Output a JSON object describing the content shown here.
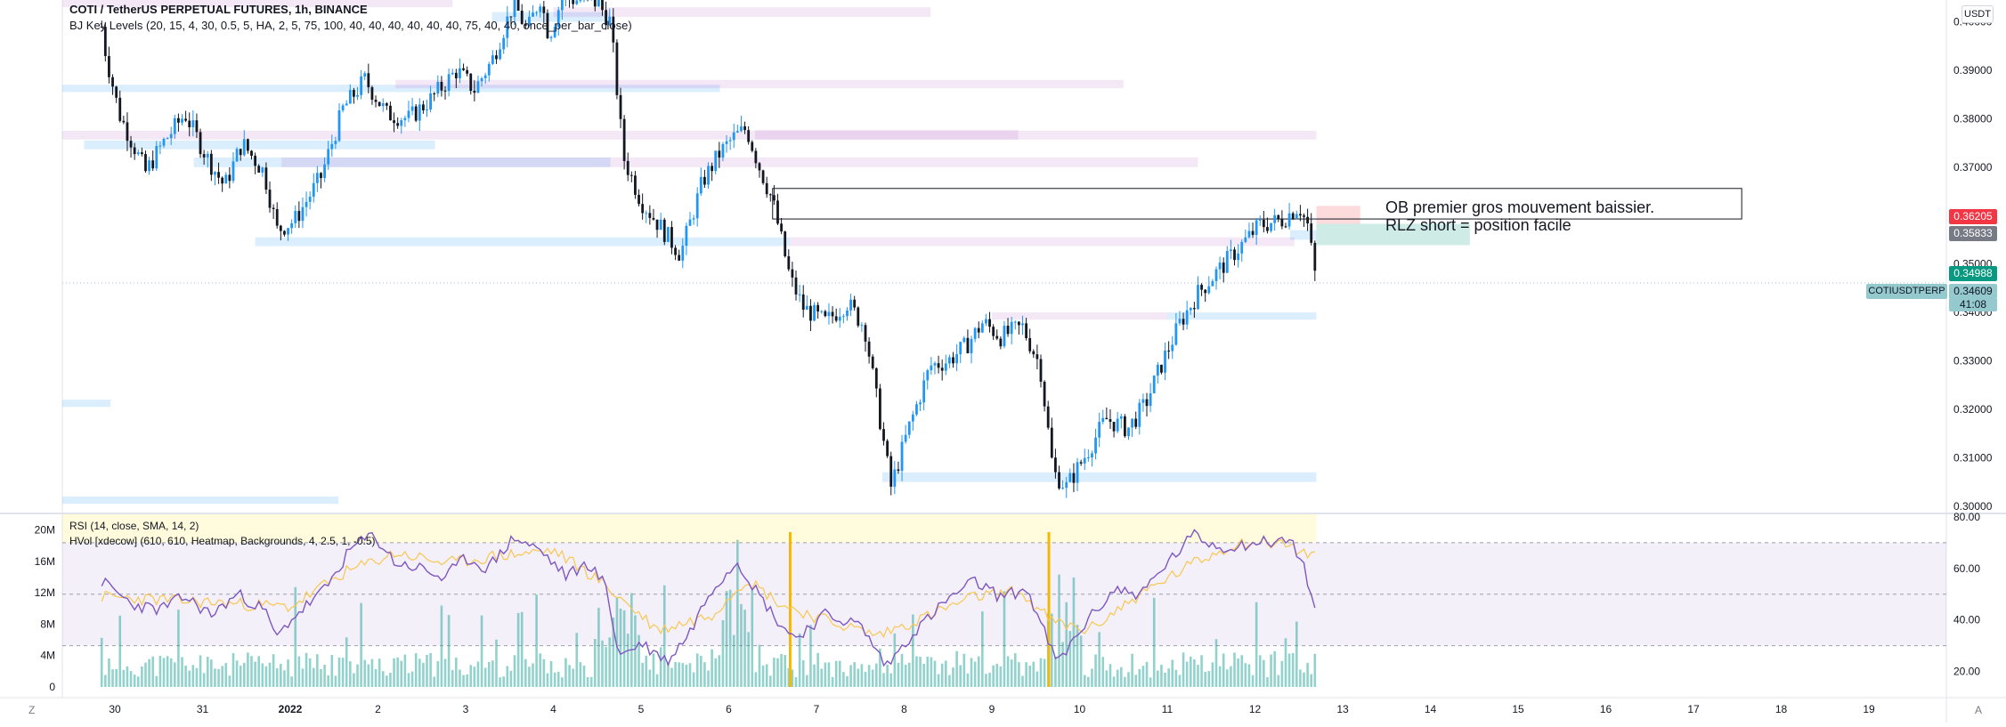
{
  "header": {
    "title": "COTI / TetherUS PERPETUAL FUTURES, 1h, BINANCE",
    "indicator": "BJ Key Levels (20, 15, 4, 30, 0.5, 5, HA, 2, 5, 75, 100, 40, 40, 40, 40, 40, 40, 75, 40, 40, once_per_bar_close)"
  },
  "lower_pane": {
    "rsi_label": "RSI (14, close, SMA, 14, 2)",
    "hvol_label": "HVol [xdecow] (610, 610, Heatmap, Backgrounds, 4, 2.5, 1, -0.5)"
  },
  "annotation": {
    "line1": "OB premier gros mouvement baissier.",
    "line2": "RLZ short = position facile"
  },
  "right_axis": {
    "currency": "USDT",
    "badges": [
      {
        "value": "0.36205",
        "color": "#f23645"
      },
      {
        "value": "0.35833",
        "color": "#787b86"
      },
      {
        "value": "0.34988",
        "color": "#089981"
      },
      {
        "value": "0.34609",
        "color": "#94c9ce",
        "countdown": "41:08"
      }
    ],
    "ticker": "COTIUSDTPERP"
  },
  "corners": {
    "left": "Z",
    "right": "A"
  },
  "chart_data": [
    {
      "type": "candlestick",
      "title": "COTI / TetherUS PERPETUAL FUTURES, 1h, BINANCE",
      "y_ticks": [
        "0.40000",
        "0.39000",
        "0.38000",
        "0.37000",
        "0.36000",
        "0.35000",
        "0.34000",
        "0.33000",
        "0.32000",
        "0.31000",
        "0.30000"
      ],
      "ylim": [
        0.2987,
        0.4045
      ],
      "x_ticks": [
        "30",
        "31",
        "2022",
        "2",
        "3",
        "4",
        "5",
        "6",
        "7",
        "8",
        "9",
        "10",
        "11",
        "12",
        "13",
        "14",
        "15",
        "16",
        "17",
        "18",
        "19"
      ],
      "x_tick_bold": "2022",
      "last_price": 0.34609,
      "close_path": [
        [
          -0.15,
          0.399
        ],
        [
          -0.1,
          0.393
        ],
        [
          0.05,
          0.381
        ],
        [
          0.15,
          0.377
        ],
        [
          0.35,
          0.369
        ],
        [
          0.55,
          0.375
        ],
        [
          0.8,
          0.381
        ],
        [
          1.05,
          0.372
        ],
        [
          1.25,
          0.366
        ],
        [
          1.45,
          0.375
        ],
        [
          1.7,
          0.369
        ],
        [
          1.85,
          0.357
        ],
        [
          2.05,
          0.359
        ],
        [
          2.35,
          0.368
        ],
        [
          2.6,
          0.382
        ],
        [
          2.85,
          0.388
        ],
        [
          3.1,
          0.381
        ],
        [
          3.35,
          0.38
        ],
        [
          3.6,
          0.384
        ],
        [
          3.9,
          0.39
        ],
        [
          4.1,
          0.386
        ],
        [
          4.3,
          0.392
        ],
        [
          4.55,
          0.404
        ],
        [
          4.7,
          0.398
        ],
        [
          4.85,
          0.405
        ],
        [
          4.95,
          0.397
        ],
        [
          5.1,
          0.405
        ],
        [
          5.5,
          0.404
        ],
        [
          5.65,
          0.4
        ],
        [
          5.8,
          0.372
        ],
        [
          6.0,
          0.363
        ],
        [
          6.25,
          0.357
        ],
        [
          6.45,
          0.352
        ],
        [
          6.7,
          0.367
        ],
        [
          6.9,
          0.373
        ],
        [
          7.05,
          0.376
        ],
        [
          7.2,
          0.378
        ],
        [
          7.35,
          0.37
        ],
        [
          7.5,
          0.363
        ],
        [
          7.7,
          0.347
        ],
        [
          7.85,
          0.341
        ],
        [
          8.1,
          0.338
        ],
        [
          8.35,
          0.342
        ],
        [
          8.55,
          0.337
        ],
        [
          8.75,
          0.315
        ],
        [
          8.85,
          0.304
        ],
        [
          9.05,
          0.316
        ],
        [
          9.3,
          0.329
        ],
        [
          9.5,
          0.33
        ],
        [
          9.7,
          0.333
        ],
        [
          9.9,
          0.338
        ],
        [
          10.1,
          0.335
        ],
        [
          10.35,
          0.337
        ],
        [
          10.55,
          0.329
        ],
        [
          10.7,
          0.307
        ],
        [
          10.85,
          0.304
        ],
        [
          11.05,
          0.31
        ],
        [
          11.3,
          0.318
        ],
        [
          11.55,
          0.316
        ],
        [
          11.75,
          0.321
        ],
        [
          11.95,
          0.33
        ],
        [
          12.15,
          0.338
        ],
        [
          12.35,
          0.344
        ],
        [
          12.6,
          0.349
        ],
        [
          12.85,
          0.354
        ],
        [
          13.05,
          0.358
        ],
        [
          13.3,
          0.359
        ],
        [
          13.5,
          0.362
        ],
        [
          13.6,
          0.358
        ],
        [
          13.7,
          0.346
        ]
      ],
      "key_level_zones": [
        {
          "kind": "support",
          "x_from": -0.35,
          "x_to": 3.65,
          "y_from": 0.3755,
          "y_to": 0.3737
        },
        {
          "kind": "support",
          "x_from": 0.9,
          "x_to": 5.65,
          "y_from": 0.372,
          "y_to": 0.37
        },
        {
          "kind": "support",
          "x_from": 1.6,
          "x_to": 7.7,
          "y_from": 0.3555,
          "y_to": 0.3537
        },
        {
          "kind": "support",
          "x_from": -0.6,
          "x_to": 6.9,
          "y_from": 0.387,
          "y_to": 0.3855
        },
        {
          "kind": "support",
          "x_from": 8.75,
          "x_to": 13.7,
          "y_from": 0.307,
          "y_to": 0.305
        },
        {
          "kind": "support",
          "x_from": 12.0,
          "x_to": 13.7,
          "y_from": 0.34,
          "y_to": 0.3385
        },
        {
          "kind": "support",
          "x_from": 13.4,
          "x_to": 13.7,
          "y_from": 0.357,
          "y_to": 0.355
        },
        {
          "kind": "support",
          "x_from": -0.6,
          "x_to": -0.05,
          "y_from": 0.322,
          "y_to": 0.3205
        },
        {
          "kind": "support",
          "x_from": -0.6,
          "x_to": 2.55,
          "y_from": 0.302,
          "y_to": 0.3005
        },
        {
          "kind": "support",
          "x_from": 4.3,
          "x_to": 5.65,
          "y_from": 0.402,
          "y_to": 0.4
        },
        {
          "kind": "resistance",
          "x_from": -0.6,
          "x_to": 3.85,
          "y_from": 0.4045,
          "y_to": 0.403
        },
        {
          "kind": "resistance",
          "x_from": 5.0,
          "x_to": 9.3,
          "y_from": 0.403,
          "y_to": 0.401
        },
        {
          "kind": "resistance",
          "x_from": 3.2,
          "x_to": 11.5,
          "y_from": 0.388,
          "y_to": 0.3863
        },
        {
          "kind": "resistance",
          "x_from": -0.6,
          "x_to": 13.7,
          "y_from": 0.3775,
          "y_to": 0.3757
        },
        {
          "kind": "resistance",
          "x_from": 7.3,
          "x_to": 10.3,
          "y_from": 0.3777,
          "y_to": 0.3757
        },
        {
          "kind": "resistance",
          "x_from": 1.9,
          "x_to": 12.35,
          "y_from": 0.372,
          "y_to": 0.37
        },
        {
          "kind": "resistance",
          "x_from": 7.7,
          "x_to": 13.45,
          "y_from": 0.3555,
          "y_to": 0.3537
        },
        {
          "kind": "resistance",
          "x_from": 10.0,
          "x_to": 12.0,
          "y_from": 0.34,
          "y_to": 0.3385
        }
      ],
      "order_block": {
        "x_from": 7.5,
        "x_to": 18.55,
        "y_from": 0.3656,
        "y_to": 0.3593
      },
      "target_zone": {
        "x_from": 13.7,
        "x_to": 15.45,
        "y_from": 0.3583,
        "y_to": 0.3539
      },
      "entry_zone": {
        "x_from": 13.7,
        "x_to": 14.2,
        "y_from": 0.362,
        "y_to": 0.3583
      },
      "last_price_line": 0.34609
    },
    {
      "type": "line",
      "title": "RSI (14, close, SMA, 14, 2)",
      "y_ticks": [
        "80.00",
        "60.00",
        "40.00",
        "20.00"
      ],
      "ylim": [
        14,
        81
      ],
      "bands": [
        70,
        50,
        30
      ],
      "rsi_path": [
        [
          -0.15,
          55
        ],
        [
          0.2,
          46
        ],
        [
          0.5,
          44
        ],
        [
          0.8,
          49
        ],
        [
          1.1,
          42
        ],
        [
          1.4,
          50
        ],
        [
          1.7,
          44
        ],
        [
          1.85,
          33
        ],
        [
          2.0,
          40
        ],
        [
          2.4,
          52
        ],
        [
          2.7,
          68
        ],
        [
          2.95,
          73
        ],
        [
          3.2,
          62
        ],
        [
          3.5,
          60
        ],
        [
          3.75,
          56
        ],
        [
          4.0,
          64
        ],
        [
          4.25,
          60
        ],
        [
          4.55,
          72
        ],
        [
          4.85,
          67
        ],
        [
          5.15,
          57
        ],
        [
          5.4,
          62
        ],
        [
          5.6,
          53
        ],
        [
          5.75,
          26
        ],
        [
          6.0,
          31
        ],
        [
          6.3,
          24
        ],
        [
          6.55,
          35
        ],
        [
          6.8,
          52
        ],
        [
          7.1,
          63
        ],
        [
          7.3,
          52
        ],
        [
          7.55,
          40
        ],
        [
          7.75,
          33
        ],
        [
          8.1,
          42
        ],
        [
          8.5,
          38
        ],
        [
          8.8,
          22
        ],
        [
          9.1,
          35
        ],
        [
          9.5,
          48
        ],
        [
          9.8,
          55
        ],
        [
          10.1,
          49
        ],
        [
          10.4,
          52
        ],
        [
          10.6,
          35
        ],
        [
          10.75,
          23
        ],
        [
          11.05,
          38
        ],
        [
          11.4,
          52
        ],
        [
          11.7,
          50
        ],
        [
          12.0,
          62
        ],
        [
          12.3,
          73
        ],
        [
          12.6,
          68
        ],
        [
          13.0,
          70
        ],
        [
          13.4,
          71
        ],
        [
          13.55,
          62
        ],
        [
          13.7,
          40
        ]
      ],
      "rsi_ma_path": [
        [
          -0.15,
          49
        ],
        [
          1.0,
          47
        ],
        [
          2.0,
          45
        ],
        [
          2.6,
          58
        ],
        [
          3.2,
          66
        ],
        [
          3.8,
          62
        ],
        [
          4.4,
          65
        ],
        [
          5.0,
          67
        ],
        [
          5.5,
          56
        ],
        [
          6.2,
          36
        ],
        [
          6.8,
          42
        ],
        [
          7.2,
          56
        ],
        [
          7.6,
          46
        ],
        [
          8.1,
          40
        ],
        [
          8.7,
          34
        ],
        [
          9.3,
          42
        ],
        [
          9.8,
          49
        ],
        [
          10.3,
          51
        ],
        [
          10.7,
          39
        ],
        [
          11.1,
          36
        ],
        [
          11.6,
          48
        ],
        [
          12.3,
          62
        ],
        [
          12.8,
          70
        ],
        [
          13.3,
          70
        ],
        [
          13.7,
          64
        ]
      ],
      "bar_max": 20
    }
  ],
  "volume_axis": {
    "ticks": [
      "20M",
      "16M",
      "12M",
      "8M",
      "4M",
      "0"
    ],
    "ylim": [
      0,
      22
    ]
  }
}
